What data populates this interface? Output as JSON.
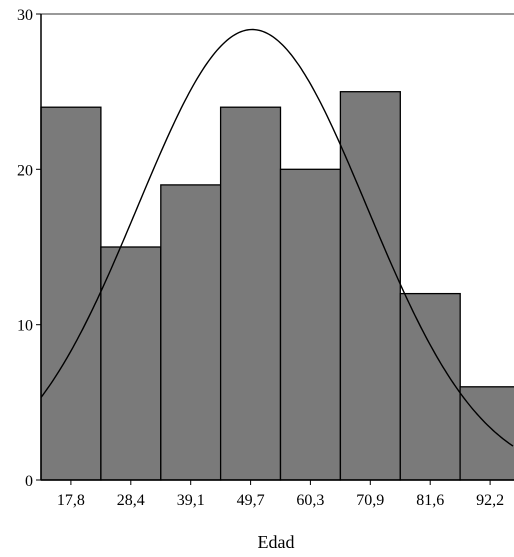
{
  "chart_data": {
    "type": "bar",
    "subtype": "histogram-with-normal-curve",
    "categories": [
      "17,8",
      "28,4",
      "39,1",
      "49,7",
      "60,3",
      "70,9",
      "81,6",
      "92,2"
    ],
    "values": [
      24,
      15,
      19,
      24,
      20,
      25,
      12,
      6
    ],
    "x_numeric": [
      17.8,
      28.4,
      39.1,
      49.7,
      60.3,
      70.9,
      81.6,
      92.2
    ],
    "xlabel": "Edad",
    "ylabel": "",
    "title": "",
    "ylim": [
      0,
      30
    ],
    "yticks": [
      0,
      10,
      20,
      30
    ],
    "grid": false,
    "legend": "none",
    "normal_curve": {
      "mean": 49.9,
      "sd": 20.3,
      "peak": 29
    },
    "colors": {
      "bar": "#7a7a7a",
      "bar_edge": "#000000",
      "curve": "#000000",
      "axis": "#000000",
      "frame": "#999999"
    }
  }
}
